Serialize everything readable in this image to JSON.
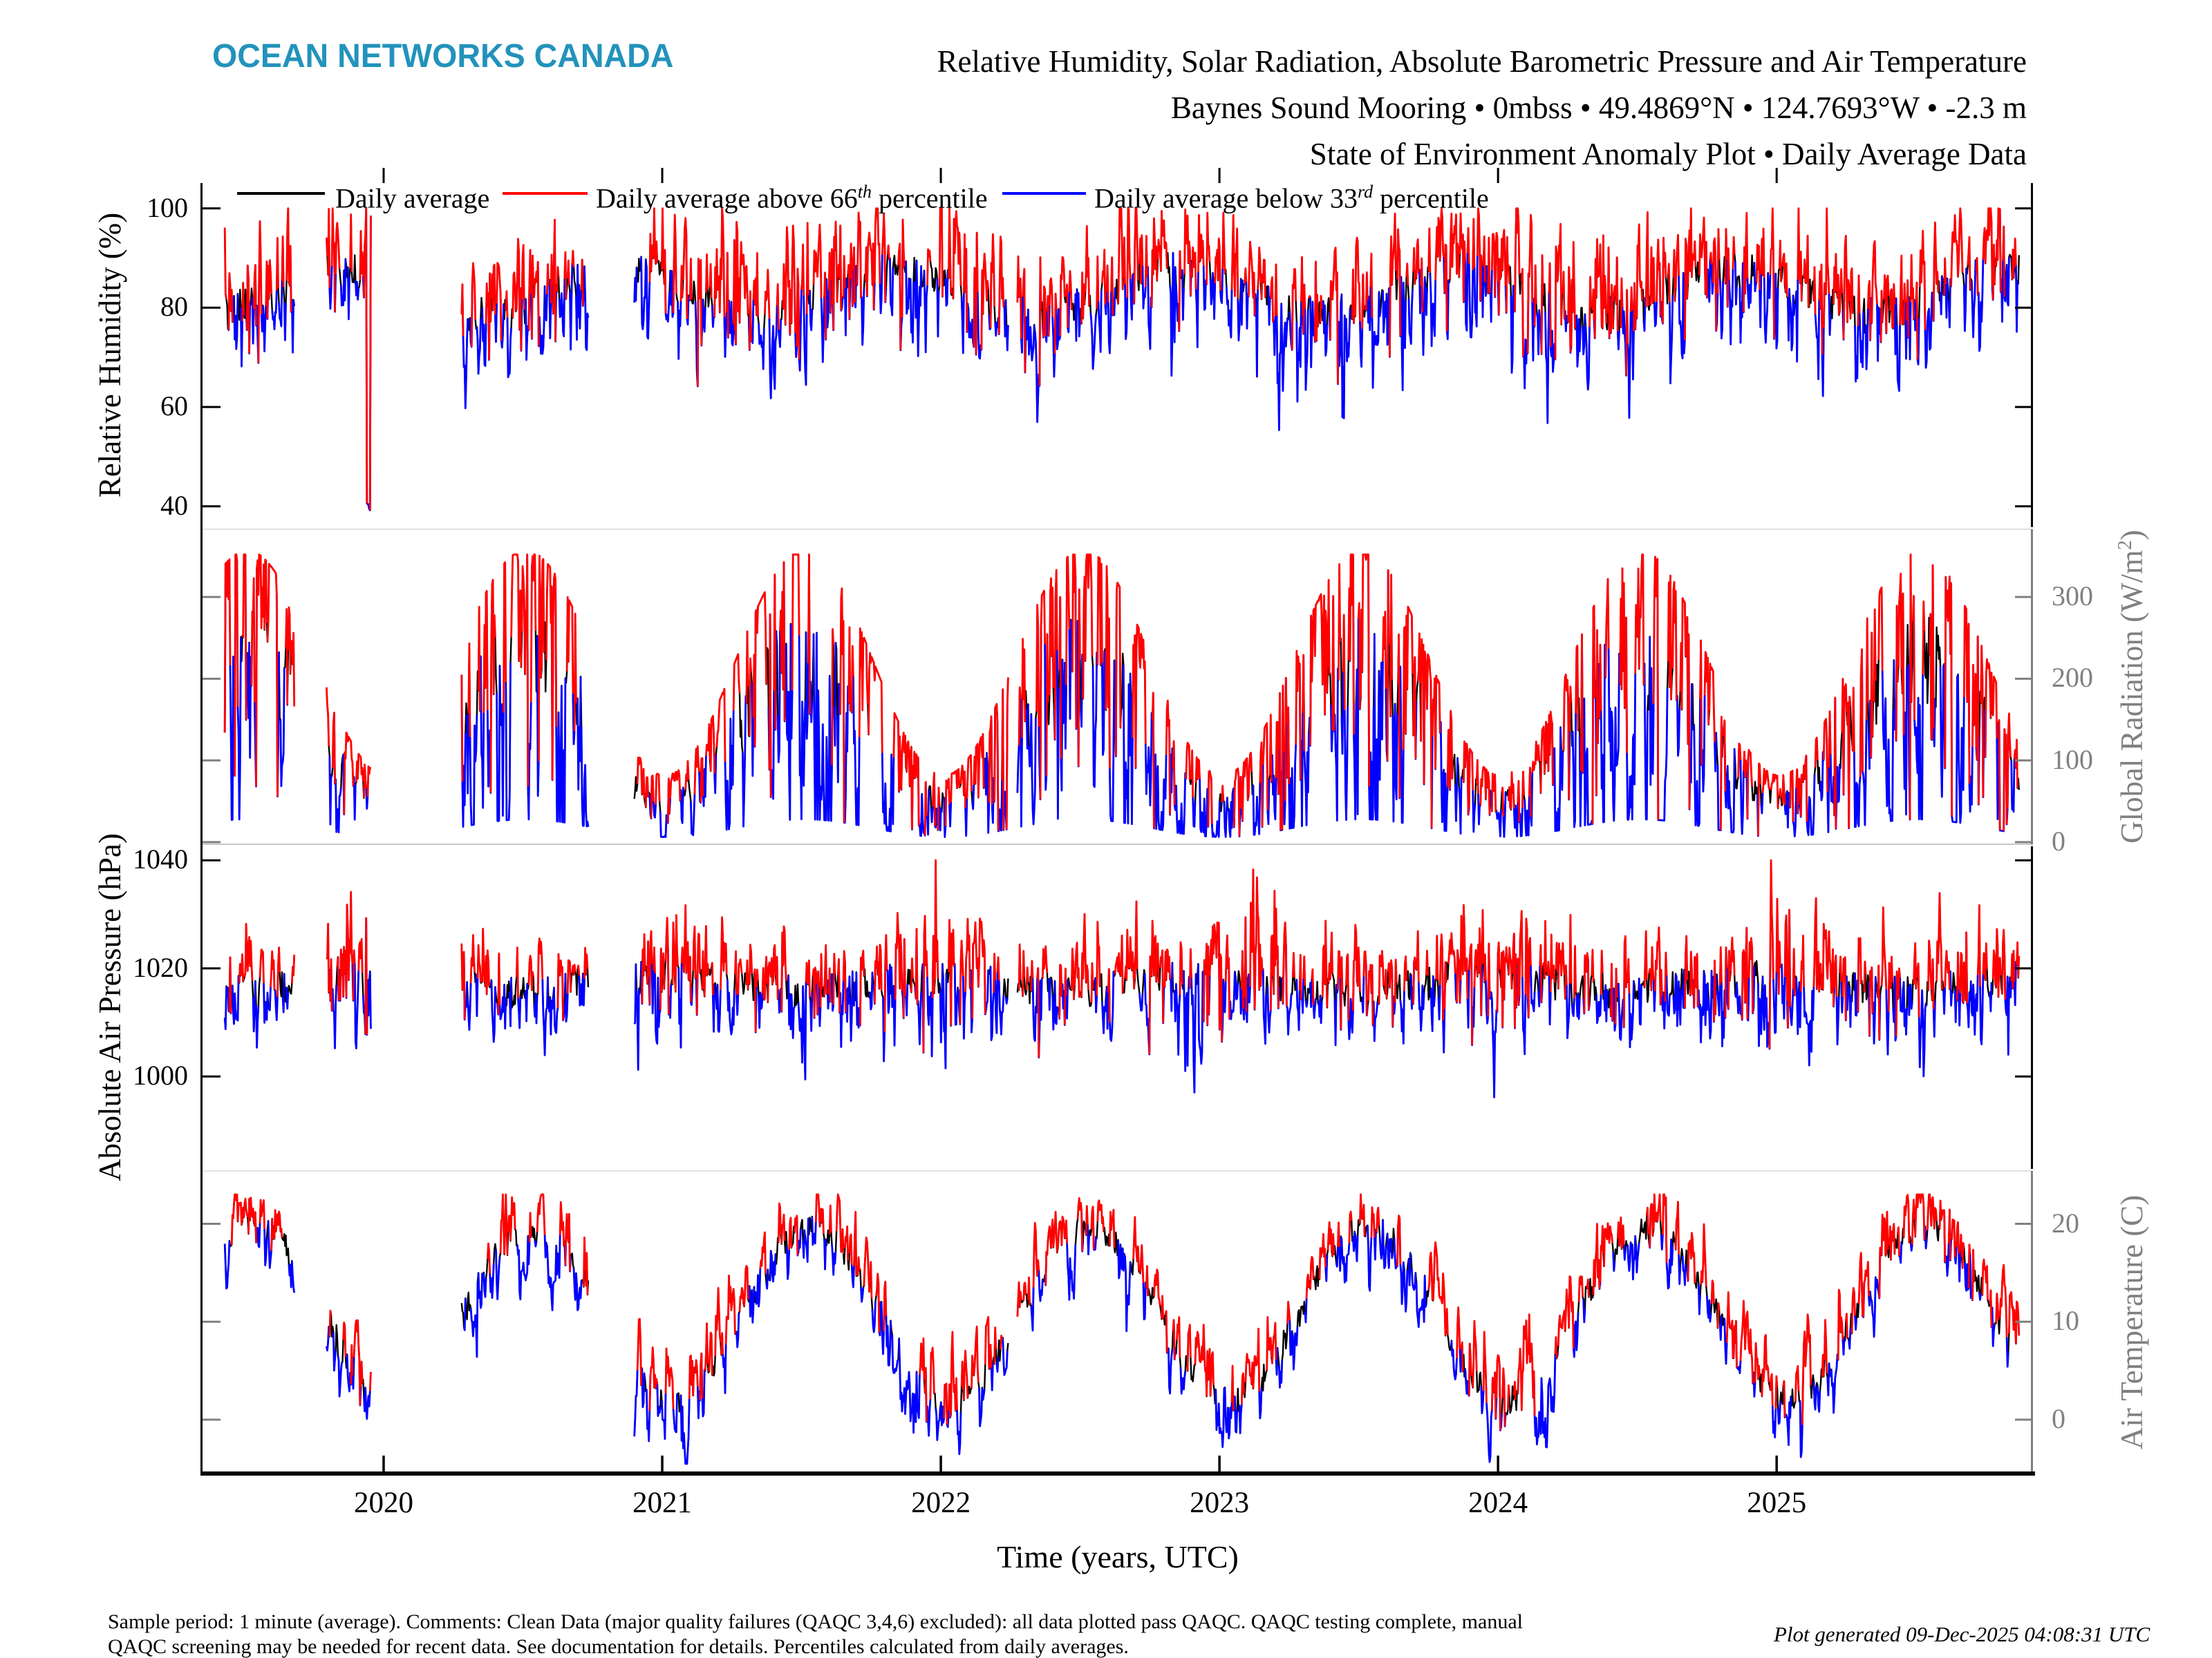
{
  "page": {
    "background": "#ffffff"
  },
  "header": {
    "logo_text": "OCEAN NETWORKS CANADA",
    "logo_color": "#2293bb",
    "title_lines": [
      "Relative Humidity, Solar Radiation, Absolute Barometric Pressure and Air Temperature",
      "Baynes Sound Mooring • 0mbss • 49.4869°N • 124.7693°W • -2.3 m",
      "State of Environment Anomaly Plot • Daily Average Data"
    ]
  },
  "legend": {
    "items": [
      {
        "pre": "Daily average",
        "sup": "",
        "post": "",
        "color": "#000000"
      },
      {
        "pre": "Daily average above 66",
        "sup": "th",
        "post": " percentile",
        "color": "#ff0000"
      },
      {
        "pre": "Daily average below 33",
        "sup": "rd",
        "post": " percentile",
        "color": "#0000ff"
      }
    ]
  },
  "footer": {
    "line1": "Sample period: 1 minute (average). Comments: Clean Data (major quality failures (QAQC 3,4,6) excluded): all data plotted pass QAQC. QAQC testing complete, manual",
    "line2": "QAQC screening may be needed for recent data. See documentation for details. Percentiles calculated from daily averages.",
    "generated_note": "Plot generated 09-Dec-2025 04:08:31 UTC"
  },
  "chart_data": {
    "type": "line",
    "xlabel": "Time (years, UTC)",
    "x_range": [
      2019.35,
      2025.92
    ],
    "x_ticks": [
      2020,
      2021,
      2022,
      2023,
      2024,
      2025
    ],
    "data_segments": [
      [
        2019.43,
        2019.68
      ],
      [
        2019.795,
        2019.955
      ],
      [
        2020.28,
        2020.735
      ],
      [
        2020.9,
        2022.243
      ],
      [
        2022.275,
        2025.87
      ]
    ],
    "series": [
      {
        "name": "Daily average",
        "color": "#000000"
      },
      {
        "name": "Daily average above 66th percentile",
        "color": "#ff0000"
      },
      {
        "name": "Daily average below 33rd percentile",
        "color": "#0000ff"
      }
    ],
    "axis_colors": {
      "left": "#000000",
      "right": "#808080"
    },
    "subplots": [
      {
        "name": "relative-humidity",
        "ylabel": "Relative Humidity (%)",
        "ylabel_sup": "",
        "ylabel_post": "",
        "label_side": "left",
        "yticks": [
          100,
          80,
          60,
          40
        ],
        "ylim": [
          35.8,
          105.1
        ],
        "typical_range": [
          55,
          100
        ],
        "model": {
          "kind": "additive",
          "seed": 7,
          "mean": 83.5,
          "seasonal_amp": 4.5,
          "season_min_frac": 0.35,
          "ar": 0.5,
          "sigma": 6.0,
          "sigma_winter_boost": 0,
          "dip_prob": 0.02,
          "dip_mag": 13,
          "red_above": 3.2,
          "blue_below": -4.2,
          "clamp": [
            38,
            100
          ],
          "forced_points": [
            {
              "t": 2019.946,
              "value": 40
            }
          ]
        }
      },
      {
        "name": "global-radiation",
        "ylabel": "Global Radiation (W/m",
        "ylabel_sup": "2",
        "ylabel_post": ")",
        "label_side": "right",
        "yticks": [
          300,
          200,
          100,
          0
        ],
        "ylim": [
          -2.5,
          383
        ],
        "typical_range": [
          5,
          350
        ],
        "model": {
          "kind": "envelope",
          "seed": 13,
          "env_mean": 215,
          "env_amp": 135,
          "season_min_frac": 0.01,
          "f_mean": 0.62,
          "ar": 0.6,
          "sigma": 0.32,
          "f_clamp": [
            0.08,
            1.02
          ],
          "red_above": 0.8,
          "blue_below": 0.45,
          "clamp": [
            2,
            352
          ],
          "forced_points": []
        }
      },
      {
        "name": "absolute-air-pressure",
        "ylabel": "Absolute Air Pressure (hPa)",
        "ylabel_sup": "",
        "ylabel_post": "",
        "label_side": "left",
        "yticks": [
          1040,
          1020,
          1000
        ],
        "ylim": [
          982.9,
          1042.6
        ],
        "typical_range": [
          990,
          1040
        ],
        "model": {
          "kind": "additive",
          "seed": 21,
          "mean": 1017.2,
          "seasonal_amp": 1.2,
          "season_min_frac": 0.45,
          "ar": 0.45,
          "sigma": 4.2,
          "sigma_winter_boost": 0.55,
          "dip_prob": 0,
          "dip_mag": 0,
          "red_above": 3.1,
          "blue_below": -3.4,
          "clamp": [
            985,
            1040
          ],
          "forced_points": []
        }
      },
      {
        "name": "air-temperature",
        "ylabel": "Air Temperature (C)",
        "ylabel_sup": "",
        "ylabel_post": "",
        "label_side": "right",
        "yticks": [
          20,
          10,
          0
        ],
        "ylim": [
          -5.5,
          25.4
        ],
        "typical_range": [
          -3,
          22
        ],
        "model": {
          "kind": "additive",
          "seed": 5,
          "mean": 10.8,
          "seasonal_amp": 8.8,
          "season_min_frac": 0.035,
          "ar": 0.7,
          "sigma": 1.7,
          "sigma_winter_boost": 0.25,
          "dip_prob": 0,
          "dip_mag": 0,
          "red_above": 1.4,
          "blue_below": -1.5,
          "clamp": [
            -4.5,
            23
          ],
          "forced_points": []
        }
      }
    ]
  }
}
